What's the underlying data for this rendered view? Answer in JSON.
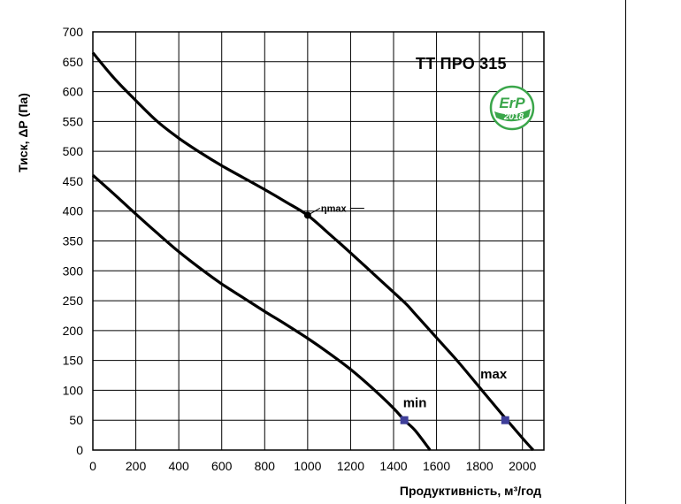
{
  "chart_data": {
    "type": "line",
    "title": "ТТ ПРО 315",
    "xlabel": "Продуктивність, м³/год",
    "ylabel": "Тиск, ΔР (Па)",
    "xlim": [
      0,
      2100
    ],
    "ylim": [
      0,
      700
    ],
    "x_ticks": [
      0,
      200,
      400,
      600,
      800,
      1000,
      1200,
      1400,
      1600,
      1800,
      2000
    ],
    "y_ticks": [
      0,
      50,
      100,
      150,
      200,
      250,
      300,
      350,
      400,
      450,
      500,
      550,
      600,
      650,
      700
    ],
    "grid": true,
    "series": [
      {
        "name": "max",
        "x": [
          0,
          100,
          200,
          300,
          400,
          500,
          600,
          700,
          800,
          900,
          1000,
          1100,
          1200,
          1300,
          1400,
          1460,
          1500,
          1600,
          1700,
          1800,
          1900,
          2000,
          2050
        ],
        "y": [
          665,
          622,
          585,
          550,
          522,
          498,
          476,
          456,
          436,
          415,
          393,
          362,
          330,
          297,
          264,
          244,
          228,
          188,
          148,
          105,
          62,
          20,
          0
        ]
      },
      {
        "name": "min",
        "x": [
          0,
          100,
          200,
          300,
          400,
          500,
          600,
          700,
          800,
          900,
          1000,
          1100,
          1200,
          1300,
          1400,
          1450,
          1500,
          1570
        ],
        "y": [
          460,
          428,
          395,
          363,
          332,
          304,
          278,
          255,
          232,
          210,
          187,
          162,
          135,
          104,
          70,
          50,
          33,
          0
        ]
      }
    ],
    "markers": [
      {
        "label": "ηmax",
        "x": 1000,
        "y": 393,
        "shape": "circle"
      },
      {
        "label": "",
        "x": 1450,
        "y": 50,
        "shape": "square",
        "color": "#3f3f9a"
      },
      {
        "label": "",
        "x": 1920,
        "y": 50,
        "shape": "square",
        "color": "#3f3f9a"
      }
    ],
    "annotations": [
      {
        "text": "max",
        "x": 1800,
        "y": 120
      },
      {
        "text": "min",
        "x": 1440,
        "y": 72
      }
    ],
    "badge": {
      "icon": "erp-2018-badge",
      "text": "ErP",
      "year": "2018",
      "color": "#3aa64a"
    }
  },
  "colors": {
    "line": "#000000",
    "marker": "#3f3f9a",
    "grid": "#000000",
    "badge_green": "#3aa64a"
  }
}
